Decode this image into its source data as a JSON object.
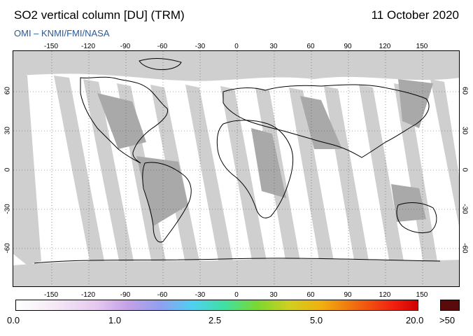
{
  "header": {
    "title": "SO2 vertical column [DU] (TRM)",
    "date": "11 October 2020",
    "credit": "OMI  –  KNMI/FMI/NASA"
  },
  "map": {
    "lon_ticks_top": [
      "-150",
      "-120",
      "-90",
      "-60",
      "-30",
      "0",
      "30",
      "60",
      "90",
      "120",
      "150"
    ],
    "lon_ticks_bottom": [
      "-150",
      "-120",
      "-90",
      "-60",
      "-30",
      "0",
      "30",
      "60",
      "90",
      "120",
      "150"
    ],
    "lat_ticks_left": [
      "60",
      "30",
      "0",
      "-30",
      "-60"
    ],
    "lat_ticks_right": [
      "60",
      "30",
      "0",
      "-30",
      "-60"
    ],
    "colors": {
      "ocean": "#ffffff",
      "no_data_light": "#cfcfcf",
      "no_data_dark": "#a9a9a9",
      "coast": "#000000",
      "grid": "#555555"
    }
  },
  "colorbar": {
    "labels": [
      "0.0",
      "1.0",
      "2.5",
      "5.0",
      "20.0"
    ],
    "overflow_label": ">50",
    "overflow_color": "#5a0a0a"
  }
}
